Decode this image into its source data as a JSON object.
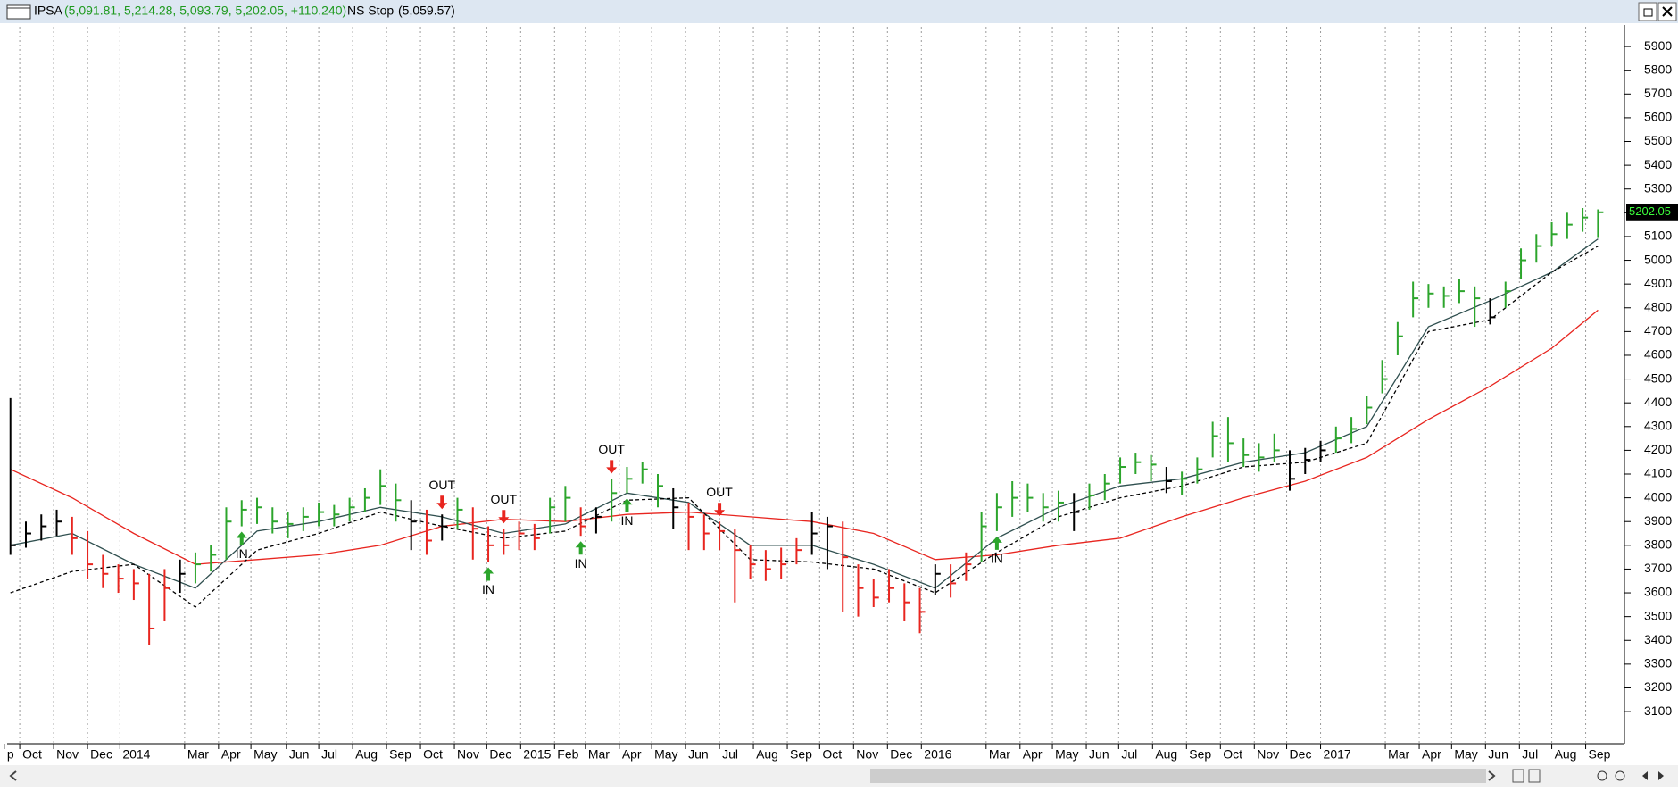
{
  "window": {
    "symbol": "IPSA",
    "quote": "(5,091.81, 5,214.28, 5,093.79, 5,202.05, +110.240)",
    "stop_name": "NS Stop",
    "stop_quote": "(5,059.57)"
  },
  "chart_data": {
    "type": "ohlc",
    "xlim": [
      -0.1,
      104.6
    ],
    "ylim": [
      2965,
      5983
    ],
    "yticks": [
      3100,
      3200,
      3300,
      3400,
      3500,
      3600,
      3700,
      3800,
      3900,
      4000,
      4100,
      4200,
      4300,
      4400,
      4500,
      4600,
      4700,
      4800,
      4900,
      5000,
      5100,
      5200,
      5300,
      5400,
      5500,
      5600,
      5700,
      5800,
      5900
    ],
    "xticks": [
      {
        "value": -0.4,
        "label": "p"
      },
      {
        "value": 0.6,
        "label": "Oct"
      },
      {
        "value": 2.8,
        "label": "Nov"
      },
      {
        "value": 5,
        "label": "Dec"
      },
      {
        "value": 7.1,
        "label": "2014"
      },
      {
        "value": 11.3,
        "label": "Mar"
      },
      {
        "value": 13.5,
        "label": "Apr"
      },
      {
        "value": 15.6,
        "label": "May"
      },
      {
        "value": 17.9,
        "label": "Jun"
      },
      {
        "value": 20,
        "label": "Jul"
      },
      {
        "value": 22.2,
        "label": "Aug"
      },
      {
        "value": 24.4,
        "label": "Sep"
      },
      {
        "value": 26.6,
        "label": "Oct"
      },
      {
        "value": 28.8,
        "label": "Nov"
      },
      {
        "value": 30.9,
        "label": "Dec"
      },
      {
        "value": 33.1,
        "label": "2015"
      },
      {
        "value": 35.3,
        "label": "Feb"
      },
      {
        "value": 37.3,
        "label": "Mar"
      },
      {
        "value": 39.5,
        "label": "Apr"
      },
      {
        "value": 41.6,
        "label": "May"
      },
      {
        "value": 43.8,
        "label": "Jun"
      },
      {
        "value": 46,
        "label": "Jul"
      },
      {
        "value": 48.2,
        "label": "Aug"
      },
      {
        "value": 50.4,
        "label": "Sep"
      },
      {
        "value": 52.5,
        "label": "Oct"
      },
      {
        "value": 54.7,
        "label": "Nov"
      },
      {
        "value": 56.9,
        "label": "Dec"
      },
      {
        "value": 59.1,
        "label": "2016"
      },
      {
        "value": 63.3,
        "label": "Mar"
      },
      {
        "value": 65.5,
        "label": "Apr"
      },
      {
        "value": 67.6,
        "label": "May"
      },
      {
        "value": 69.8,
        "label": "Jun"
      },
      {
        "value": 71.9,
        "label": "Jul"
      },
      {
        "value": 74.1,
        "label": "Aug"
      },
      {
        "value": 76.3,
        "label": "Sep"
      },
      {
        "value": 78.5,
        "label": "Oct"
      },
      {
        "value": 80.7,
        "label": "Nov"
      },
      {
        "value": 82.8,
        "label": "Dec"
      },
      {
        "value": 85,
        "label": "2017"
      },
      {
        "value": 89.2,
        "label": "Mar"
      },
      {
        "value": 91.4,
        "label": "Apr"
      },
      {
        "value": 93.5,
        "label": "May"
      },
      {
        "value": 95.7,
        "label": "Jun"
      },
      {
        "value": 97.9,
        "label": "Jul"
      },
      {
        "value": 100,
        "label": "Aug"
      },
      {
        "value": 102.2,
        "label": "Sep"
      }
    ],
    "grid": true,
    "up_color": "#2ca52c",
    "down_color": "#e8251f",
    "neutral_color": "#000000",
    "high": [
      4420,
      3900,
      3930,
      3950,
      3920,
      3860,
      3760,
      3720,
      3700,
      3680,
      3700,
      3740,
      3770,
      3800,
      3960,
      3990,
      4000,
      3960,
      3940,
      3960,
      3980,
      3970,
      4000,
      4040,
      4120,
      4060,
      3990,
      3950,
      3930,
      4000,
      3960,
      3880,
      3870,
      3900,
      3890,
      4000,
      4050,
      3960,
      3960,
      4080,
      4130,
      4150,
      4100,
      4040,
      3980,
      3930,
      3900,
      3870,
      3800,
      3780,
      3790,
      3830,
      3940,
      3920,
      3900,
      3720,
      3660,
      3700,
      3640,
      3620,
      3720,
      3720,
      3770,
      3940,
      4020,
      4070,
      4060,
      4020,
      4030,
      4020,
      4060,
      4100,
      4170,
      4190,
      4180,
      4130,
      4110,
      4170,
      4320,
      4340,
      4250,
      4230,
      4270,
      4200,
      4210,
      4240,
      4300,
      4340,
      4430,
      4580,
      4740,
      4910,
      4900,
      4890,
      4920,
      4890,
      4840,
      4910,
      5050,
      5110,
      5160,
      5200,
      5220,
      5214.28
    ],
    "low": [
      3760,
      3790,
      3820,
      3840,
      3760,
      3660,
      3620,
      3600,
      3570,
      3380,
      3480,
      3600,
      3640,
      3690,
      3740,
      3880,
      3890,
      3850,
      3830,
      3860,
      3880,
      3880,
      3900,
      3940,
      3970,
      3900,
      3780,
      3760,
      3820,
      3870,
      3740,
      3730,
      3760,
      3780,
      3780,
      3850,
      3900,
      3840,
      3850,
      3900,
      4020,
      4060,
      3960,
      3870,
      3780,
      3780,
      3780,
      3560,
      3660,
      3650,
      3660,
      3720,
      3760,
      3700,
      3520,
      3500,
      3540,
      3560,
      3480,
      3430,
      3590,
      3580,
      3650,
      3730,
      3860,
      3920,
      3940,
      3900,
      3900,
      3860,
      3950,
      3990,
      4060,
      4100,
      4070,
      4020,
      4010,
      4060,
      4170,
      4150,
      4130,
      4110,
      4150,
      4030,
      4100,
      4150,
      4190,
      4230,
      4310,
      4440,
      4600,
      4760,
      4800,
      4800,
      4820,
      4720,
      4730,
      4800,
      4920,
      4990,
      5060,
      5090,
      5120,
      5093.79
    ],
    "close": [
      3800,
      3850,
      3880,
      3900,
      3830,
      3720,
      3680,
      3660,
      3640,
      3450,
      3620,
      3680,
      3720,
      3760,
      3900,
      3950,
      3960,
      3900,
      3890,
      3920,
      3940,
      3930,
      3960,
      4000,
      4050,
      3990,
      3900,
      3820,
      3880,
      3950,
      3870,
      3800,
      3800,
      3850,
      3830,
      3960,
      4000,
      3880,
      3920,
      4020,
      4080,
      4120,
      4050,
      3960,
      3920,
      3850,
      3860,
      3780,
      3720,
      3700,
      3720,
      3780,
      3850,
      3880,
      3750,
      3620,
      3580,
      3620,
      3560,
      3520,
      3680,
      3640,
      3720,
      3880,
      3960,
      4000,
      4000,
      3960,
      3980,
      3940,
      4010,
      4060,
      4130,
      4150,
      4140,
      4070,
      4080,
      4120,
      4260,
      4230,
      4180,
      4170,
      4200,
      4080,
      4160,
      4200,
      4250,
      4290,
      4380,
      4500,
      4680,
      4840,
      4860,
      4850,
      4870,
      4840,
      4760,
      4870,
      5000,
      5060,
      5110,
      5150,
      5180,
      5202.05
    ],
    "lines": [
      {
        "color": "#e8251f",
        "dashed": false,
        "x": [
          0,
          4,
          8,
          12,
          16,
          20,
          24,
          28,
          32,
          36,
          40,
          44,
          48,
          52,
          56,
          60,
          64,
          68,
          72,
          76,
          80,
          84,
          88,
          92,
          96,
          100,
          103
        ],
        "values": [
          4120,
          4000,
          3850,
          3720,
          3740,
          3760,
          3800,
          3880,
          3910,
          3900,
          3930,
          3940,
          3920,
          3900,
          3850,
          3740,
          3760,
          3800,
          3830,
          3920,
          4000,
          4070,
          4170,
          4330,
          4470,
          4630,
          4790
        ]
      },
      {
        "color": "#2f4f4f",
        "dashed": false,
        "x": [
          0,
          4,
          8,
          12,
          16,
          20,
          24,
          28,
          32,
          36,
          40,
          44,
          48,
          52,
          56,
          60,
          64,
          68,
          72,
          76,
          80,
          84,
          88,
          92,
          96,
          100,
          103
        ],
        "values": [
          3800,
          3850,
          3720,
          3620,
          3860,
          3900,
          3960,
          3920,
          3850,
          3890,
          4020,
          3980,
          3800,
          3800,
          3720,
          3620,
          3830,
          3960,
          4050,
          4080,
          4150,
          4190,
          4300,
          4720,
          4830,
          4950,
          5090
        ]
      },
      {
        "color": "#000000",
        "dashed": true,
        "x": [
          0,
          4,
          8,
          12,
          16,
          20,
          24,
          28,
          32,
          36,
          40,
          44,
          48,
          52,
          56,
          60,
          64,
          68,
          72,
          76,
          80,
          84,
          88,
          92,
          96,
          100,
          103
        ],
        "values": [
          3600,
          3690,
          3720,
          3540,
          3780,
          3850,
          3940,
          3880,
          3830,
          3860,
          3990,
          4000,
          3740,
          3730,
          3700,
          3600,
          3770,
          3920,
          4000,
          4050,
          4130,
          4150,
          4230,
          4700,
          4750,
          4950,
          5059.57
        ]
      }
    ],
    "signals": [
      {
        "label": "IN",
        "x": 15
      },
      {
        "label": "OUT",
        "x": 28
      },
      {
        "label": "IN",
        "x": 31
      },
      {
        "label": "OUT",
        "x": 32
      },
      {
        "label": "IN",
        "x": 37
      },
      {
        "label": "OUT",
        "x": 39
      },
      {
        "label": "IN",
        "x": 40
      },
      {
        "label": "OUT",
        "x": 46
      },
      {
        "label": "IN",
        "x": 64
      }
    ],
    "last_price": {
      "value": 5202.05,
      "label": "5202.05"
    }
  }
}
